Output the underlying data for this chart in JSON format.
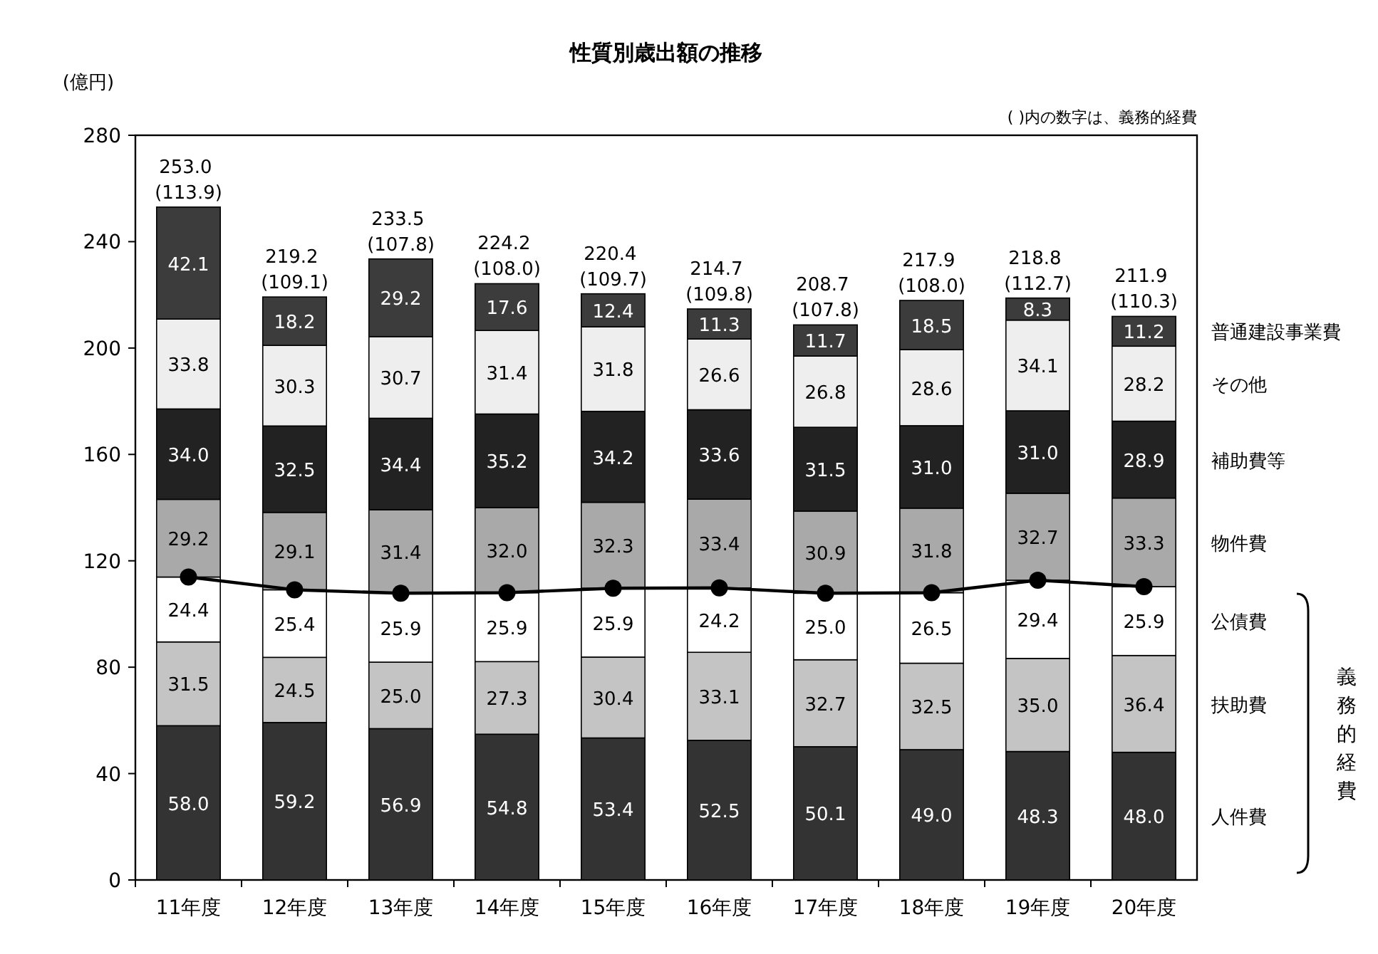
{
  "chart_data": {
    "type": "bar",
    "stacked": true,
    "title": "性質別歳出額の推移",
    "ylabel": "(億円)",
    "annotations": [
      "( )内の数字は、義務的経費",
      "義務的経費"
    ],
    "categories": [
      "11年度",
      "12年度",
      "13年度",
      "14年度",
      "15年度",
      "16年度",
      "17年度",
      "18年度",
      "19年度",
      "20年度"
    ],
    "ylim": [
      0,
      280
    ],
    "yticks": [
      0,
      40,
      80,
      120,
      160,
      200,
      240,
      280
    ],
    "grid": false,
    "totals": [
      "253.0 (113.9)",
      "219.2 (109.1)",
      "233.5 (107.8)",
      "224.2 (108.0)",
      "220.4 (109.7)",
      "214.7 (109.8)",
      "208.7 (107.8)",
      "217.9 (108.0)",
      "218.8 (112.7)",
      "211.9 (110.3)"
    ],
    "series": [
      {
        "name": "人件費",
        "color": "#333333",
        "values": [
          58.0,
          59.2,
          56.9,
          54.8,
          53.4,
          52.5,
          50.1,
          49.0,
          48.3,
          48.0
        ],
        "value_labels": [
          "58.0",
          "59.2",
          "56.9",
          "54.8",
          "53.4",
          "52.5",
          "50.1",
          "49.0",
          "48.3",
          "48.0"
        ]
      },
      {
        "name": "扶助費",
        "color": "#c4c4c4",
        "values": [
          31.5,
          24.5,
          25.0,
          27.3,
          30.4,
          33.1,
          32.7,
          32.5,
          35.0,
          36.4
        ],
        "value_labels": [
          "31.5",
          "24.5",
          "25.0",
          "27.3",
          "30.4",
          "33.1",
          "32.7",
          "32.5",
          "35.0",
          "36.4"
        ]
      },
      {
        "name": "公債費",
        "color": "#ffffff",
        "values": [
          24.4,
          25.4,
          25.9,
          25.9,
          25.9,
          24.2,
          25.0,
          26.5,
          29.4,
          25.9
        ],
        "value_labels": [
          "24.4",
          "25.4",
          "25.9",
          "25.9",
          "25.9",
          "24.2",
          "25.0",
          "26.5",
          "29.4",
          "25.9"
        ]
      },
      {
        "name": "物件費",
        "color": "#a9a9a9",
        "values": [
          29.2,
          29.1,
          31.4,
          32.0,
          32.3,
          33.4,
          30.9,
          31.8,
          32.7,
          33.3
        ],
        "value_labels": [
          "29.2",
          "29.1",
          "31.4",
          "32.0",
          "32.3",
          "33.4",
          "30.9",
          "31.8",
          "32.7",
          "33.3"
        ]
      },
      {
        "name": "補助費等",
        "color": "#222222",
        "values": [
          34.0,
          32.5,
          34.4,
          35.2,
          34.2,
          33.6,
          31.5,
          31.0,
          31.0,
          28.9
        ],
        "value_labels": [
          "34.0",
          "32.5",
          "34.4",
          "35.2",
          "34.2",
          "33.6",
          "31.5",
          "31.0",
          "31.0",
          "28.9"
        ]
      },
      {
        "name": "その他",
        "color": "#eeeeee",
        "values": [
          33.8,
          30.3,
          30.7,
          31.4,
          31.8,
          26.6,
          26.8,
          28.6,
          34.1,
          28.2
        ],
        "value_labels": [
          "33.8",
          "30.3",
          "30.7",
          "31.4",
          "31.8",
          "26.6",
          "26.8",
          "28.6",
          "34.1",
          "28.2"
        ]
      },
      {
        "name": "普通建設事業費",
        "color": "#3c3c3c",
        "values": [
          42.1,
          18.2,
          29.2,
          17.6,
          12.4,
          11.3,
          11.7,
          18.5,
          8.3,
          11.2
        ],
        "value_labels": [
          "42.1",
          "18.2",
          "29.2",
          "17.6",
          "12.4",
          "11.3",
          "11.7",
          "18.5",
          "8.3",
          "11.2"
        ]
      },
      {
        "type": "line",
        "color": "#000000",
        "marker": "circle",
        "values": [
          113.9,
          109.1,
          107.8,
          108.0,
          109.7,
          109.8,
          107.8,
          108.0,
          112.7,
          110.3
        ]
      }
    ]
  }
}
